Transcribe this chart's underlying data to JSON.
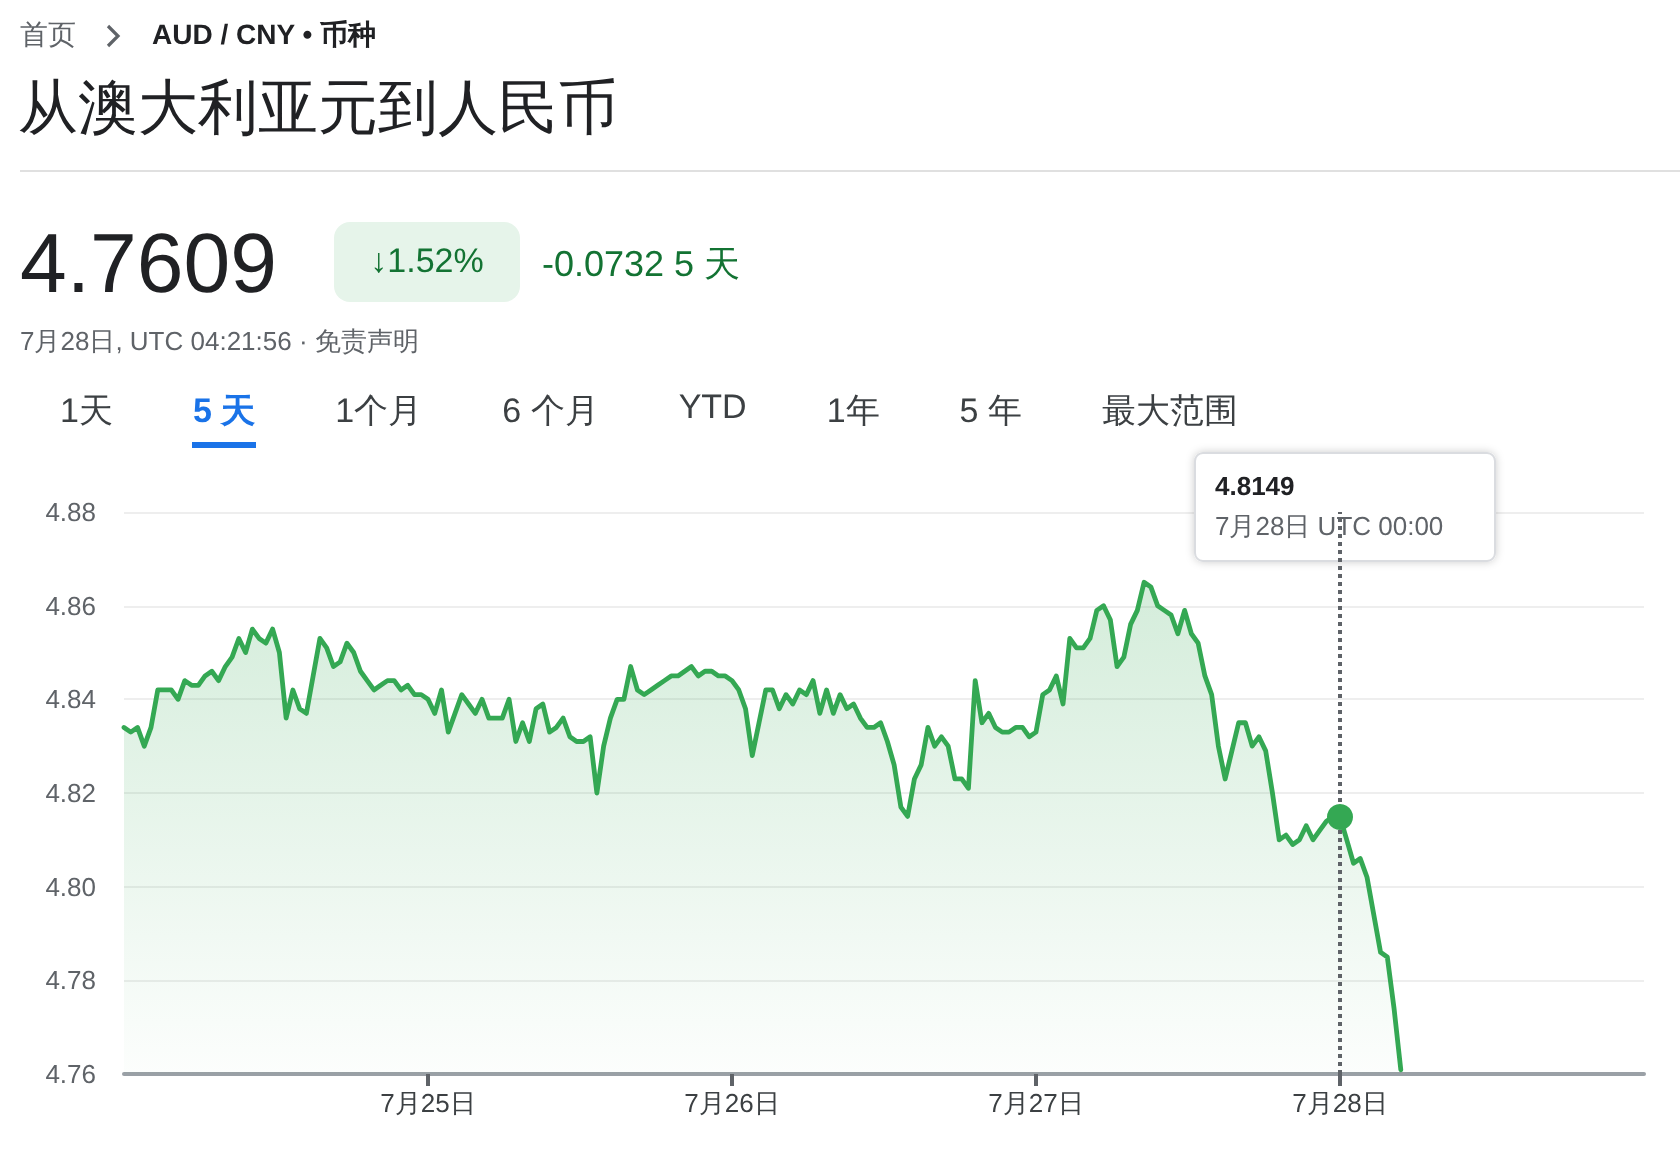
{
  "chart_data": {
    "type": "area",
    "title": "从澳大利亚元到人民币",
    "annotations": [
      "首页",
      "AUD / CNY • 币种",
      "4.7609",
      "↓1.52%",
      "-0.0732 5 天",
      "7月28日, UTC 04:21:56 · 免责声明",
      "1天",
      "5 天",
      "1个月",
      "6 个月",
      "YTD",
      "1年",
      "5 年",
      "最大范围",
      "4.8149",
      "7月28日 UTC 00:00"
    ],
    "categories": [
      null,
      null,
      null,
      null,
      null,
      null,
      null,
      null,
      null,
      null,
      null,
      null,
      null,
      null,
      null,
      null,
      null,
      null,
      null,
      null,
      null,
      null,
      null,
      null,
      null,
      null,
      null,
      null,
      null,
      null,
      null,
      null,
      null,
      null,
      null,
      null,
      null,
      null,
      null,
      null,
      null,
      null,
      null,
      null,
      null,
      "7月25日",
      null,
      null,
      null,
      null,
      null,
      null,
      null,
      null,
      null,
      null,
      null,
      null,
      null,
      null,
      null,
      null,
      null,
      null,
      null,
      null,
      null,
      null,
      null,
      null,
      null,
      null,
      null,
      null,
      null,
      null,
      null,
      null,
      null,
      null,
      null,
      null,
      null,
      null,
      null,
      null,
      null,
      null,
      null,
      null,
      "7月26日",
      null,
      null,
      null,
      null,
      null,
      null,
      null,
      null,
      null,
      null,
      null,
      null,
      null,
      null,
      null,
      null,
      null,
      null,
      null,
      null,
      null,
      null,
      null,
      null,
      null,
      null,
      null,
      null,
      null,
      null,
      null,
      null,
      null,
      null,
      null,
      null,
      null,
      null,
      null,
      null,
      null,
      null,
      null,
      null,
      "7月27日",
      null,
      null,
      null,
      null,
      null,
      null,
      null,
      null,
      null,
      null,
      null,
      null,
      null,
      null,
      null,
      null,
      null,
      null,
      null,
      null,
      null,
      null,
      null,
      null,
      null,
      null,
      null,
      null,
      null,
      null,
      null,
      null,
      null,
      null,
      null,
      null,
      null,
      null,
      null,
      null,
      null,
      null,
      null,
      null,
      "7月28日",
      null,
      null,
      null,
      null,
      null,
      null,
      null,
      null,
      null,
      null,
      null,
      null,
      null,
      null,
      null,
      null,
      null,
      null,
      null,
      null,
      null,
      null,
      null,
      null,
      null,
      null,
      null,
      null,
      null,
      null,
      null,
      null,
      null,
      null,
      null,
      null,
      null,
      null,
      null,
      null,
      null,
      null,
      null,
      null,
      null
    ],
    "ylim": [
      4.76,
      4.88
    ],
    "yticks": [
      4.76,
      4.78,
      {
        "value": 4.8,
        "label": "4.80"
      },
      4.82,
      4.84,
      4.86,
      4.88
    ],
    "grid": "y",
    "marker": "none",
    "line_style": "solid",
    "ref_lines": [
      {
        "axis": "x",
        "value": "7月28日",
        "color": "#5f6368",
        "line_style": "dotted"
      }
    ],
    "series": [
      {
        "color": "#34a853",
        "values": [
          4.834,
          4.833,
          4.834,
          4.83,
          4.834,
          4.842,
          4.842,
          4.842,
          4.84,
          4.844,
          4.843,
          4.843,
          4.845,
          4.846,
          4.844,
          4.847,
          4.849,
          4.853,
          4.85,
          4.855,
          4.853,
          4.852,
          4.855,
          4.85,
          4.836,
          4.842,
          4.838,
          4.837,
          4.845,
          4.853,
          4.851,
          4.847,
          4.848,
          4.852,
          4.85,
          4.846,
          4.844,
          4.842,
          4.843,
          4.844,
          4.844,
          4.842,
          4.843,
          4.841,
          4.841,
          4.84,
          4.837,
          4.842,
          4.833,
          4.837,
          4.841,
          4.839,
          4.837,
          4.84,
          4.836,
          4.836,
          4.836,
          4.84,
          4.831,
          4.835,
          4.831,
          4.838,
          4.839,
          4.833,
          4.834,
          4.836,
          4.832,
          4.831,
          4.831,
          4.832,
          4.82,
          4.83,
          4.836,
          4.84,
          4.84,
          4.847,
          4.842,
          4.841,
          4.842,
          4.843,
          4.844,
          4.845,
          4.845,
          4.846,
          4.847,
          4.845,
          4.846,
          4.846,
          4.845,
          4.845,
          4.844,
          4.842,
          4.838,
          4.828,
          4.835,
          4.842,
          4.842,
          4.838,
          4.841,
          4.839,
          4.842,
          4.841,
          4.844,
          4.837,
          4.842,
          4.837,
          4.841,
          4.838,
          4.839,
          4.836,
          4.834,
          4.834,
          4.835,
          4.831,
          4.826,
          4.817,
          4.815,
          4.823,
          4.826,
          4.834,
          4.83,
          4.832,
          4.83,
          4.823,
          4.823,
          4.821,
          4.844,
          4.835,
          4.837,
          4.834,
          4.833,
          4.833,
          4.834,
          4.834,
          4.832,
          4.833,
          4.841,
          4.842,
          4.845,
          4.839,
          4.853,
          4.851,
          4.851,
          4.853,
          4.859,
          4.86,
          4.857,
          4.847,
          4.849,
          4.856,
          4.859,
          4.865,
          4.864,
          4.86,
          4.859,
          4.858,
          4.854,
          4.859,
          4.854,
          4.852,
          4.845,
          4.841,
          4.83,
          4.823,
          4.829,
          4.835,
          4.835,
          4.83,
          4.832,
          4.829,
          4.82,
          4.81,
          4.811,
          4.809,
          4.81,
          4.813,
          4.81,
          4.812,
          4.814,
          4.815,
          4.8149,
          4.81,
          4.805,
          4.806,
          4.802,
          4.794,
          4.786,
          4.785,
          4.774,
          4.7609,
          null,
          null,
          null,
          null,
          null,
          null,
          null,
          null,
          null,
          null,
          null,
          null,
          null,
          null,
          null,
          null,
          null,
          null,
          null,
          null,
          null,
          null,
          null,
          null,
          null,
          null,
          null,
          null,
          null,
          null,
          null,
          null,
          null,
          null,
          null,
          null
        ]
      }
    ]
  }
}
